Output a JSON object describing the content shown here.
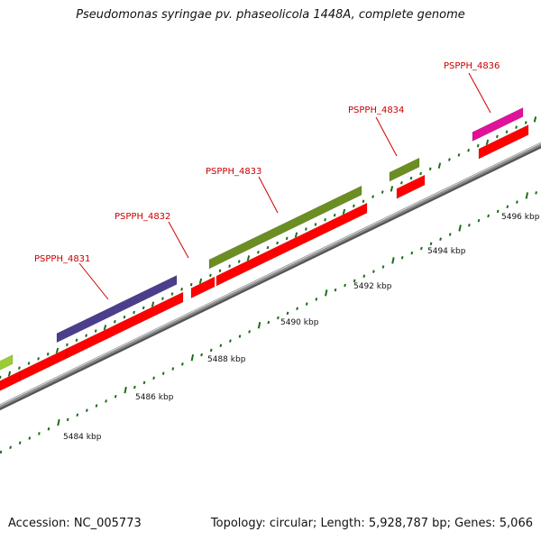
{
  "title": "Pseudomonas syringae pv. phaseolicola 1448A, complete genome",
  "footer": {
    "accession": "Accession: NC_005773",
    "summary": "Topology: circular; Length: 5,928,787 bp; Genes: 5,066"
  },
  "colors": {
    "backbone": "#8c8c8c",
    "cds": "#ff0000",
    "gene_label": "#cc0000",
    "tick": "#1a6e1a"
  },
  "map": {
    "scale_labels": [
      {
        "bp": 5484000,
        "text": "5484 kbp"
      },
      {
        "bp": 5486000,
        "text": "5486 kbp"
      },
      {
        "bp": 5488000,
        "text": "5488 kbp"
      },
      {
        "bp": 5490000,
        "text": "5490 kbp"
      },
      {
        "bp": 5492000,
        "text": "5492 kbp"
      },
      {
        "bp": 5494000,
        "text": "5494 kbp"
      },
      {
        "bp": 5496000,
        "text": "5496 kbp"
      }
    ],
    "gene_labels": [
      "PSPPH_4831",
      "PSPPH_4832",
      "PSPPH_4833",
      "PSPPH_4834",
      "PSPPH_4836"
    ],
    "genes": [
      {
        "color": "#9acd32",
        "partial": true
      },
      {
        "color": "#4b3f8c",
        "label": "PSPPH_4831"
      },
      {
        "color": "#6b8e23",
        "label": "PSPPH_4833"
      },
      {
        "color": "#6b8e23",
        "label": "PSPPH_4834"
      },
      {
        "color": "#e0129a",
        "label": "PSPPH_4836"
      }
    ]
  }
}
